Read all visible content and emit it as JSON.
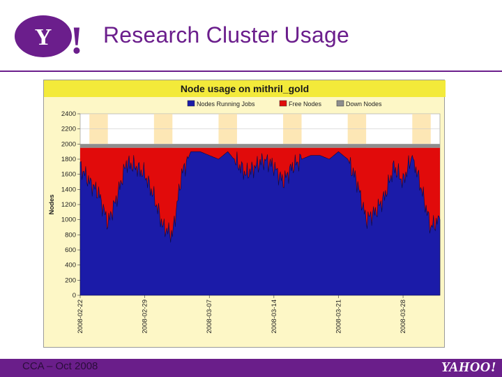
{
  "slide": {
    "title": "Research Cluster Usage",
    "footer_left": "CCA – Oct 2008",
    "footer_logo": "YAHOO!",
    "logo_text": "Y!"
  },
  "colors": {
    "brand_purple": "#6b1e8c",
    "chart_bg": "#fdf7c6",
    "title_bar": "#f3ea3a",
    "series_running": "#1b1ba8",
    "series_free": "#e10b0b",
    "series_down": "#8e8e8e",
    "weekend_band": "#fde7b5"
  },
  "chart_data": {
    "type": "area",
    "title": "Node usage on mithril_gold",
    "ylabel": "Nodes",
    "xlabel": "",
    "ylim": [
      0,
      2400
    ],
    "yticks": [
      0,
      200,
      400,
      600,
      800,
      1000,
      1200,
      1400,
      1600,
      1800,
      2000,
      2200,
      2400
    ],
    "x_range": [
      "2008-02-22",
      "2008-04-01"
    ],
    "x_ticklabels": [
      "2008-02-22",
      "2008-02-29",
      "2008-03-07",
      "2008-03-14",
      "2008-03-21",
      "2008-03-28"
    ],
    "legend": [
      "Nodes Running Jobs",
      "Free Nodes",
      "Down Nodes"
    ],
    "legend_position": "top",
    "weekend_bands": [
      [
        "2008-02-23",
        "2008-02-25"
      ],
      [
        "2008-03-01",
        "2008-03-03"
      ],
      [
        "2008-03-08",
        "2008-03-10"
      ],
      [
        "2008-03-15",
        "2008-03-17"
      ],
      [
        "2008-03-22",
        "2008-03-24"
      ],
      [
        "2008-03-29",
        "2008-03-31"
      ]
    ],
    "total_nodes": 1950,
    "down_nodes": 50,
    "series": [
      {
        "name": "Nodes Running Jobs",
        "points": [
          [
            "2008-02-22",
            1700
          ],
          [
            "2008-02-23",
            1500
          ],
          [
            "2008-02-24",
            1350
          ],
          [
            "2008-02-25",
            950
          ],
          [
            "2008-02-26",
            1300
          ],
          [
            "2008-02-27",
            1750
          ],
          [
            "2008-02-28",
            1700
          ],
          [
            "2008-02-29",
            1600
          ],
          [
            "2008-03-01",
            1300
          ],
          [
            "2008-03-02",
            900
          ],
          [
            "2008-03-03",
            800
          ],
          [
            "2008-03-04",
            1600
          ],
          [
            "2008-03-05",
            1900
          ],
          [
            "2008-03-06",
            1900
          ],
          [
            "2008-03-07",
            1850
          ],
          [
            "2008-03-08",
            1800
          ],
          [
            "2008-03-09",
            1900
          ],
          [
            "2008-03-10",
            1750
          ],
          [
            "2008-03-11",
            1600
          ],
          [
            "2008-03-12",
            1700
          ],
          [
            "2008-03-13",
            1800
          ],
          [
            "2008-03-14",
            1700
          ],
          [
            "2008-03-15",
            1500
          ],
          [
            "2008-03-16",
            1700
          ],
          [
            "2008-03-17",
            1800
          ],
          [
            "2008-03-18",
            1850
          ],
          [
            "2008-03-19",
            1850
          ],
          [
            "2008-03-20",
            1800
          ],
          [
            "2008-03-21",
            1900
          ],
          [
            "2008-03-22",
            1800
          ],
          [
            "2008-03-23",
            1500
          ],
          [
            "2008-03-24",
            1000
          ],
          [
            "2008-03-25",
            1100
          ],
          [
            "2008-03-26",
            1300
          ],
          [
            "2008-03-27",
            1700
          ],
          [
            "2008-03-28",
            1500
          ],
          [
            "2008-03-29",
            1850
          ],
          [
            "2008-03-30",
            1400
          ],
          [
            "2008-03-31",
            900
          ],
          [
            "2008-04-01",
            1000
          ]
        ]
      },
      {
        "name": "Free Nodes",
        "note": ""
      },
      {
        "name": "Down Nodes",
        "note": ""
      }
    ]
  }
}
